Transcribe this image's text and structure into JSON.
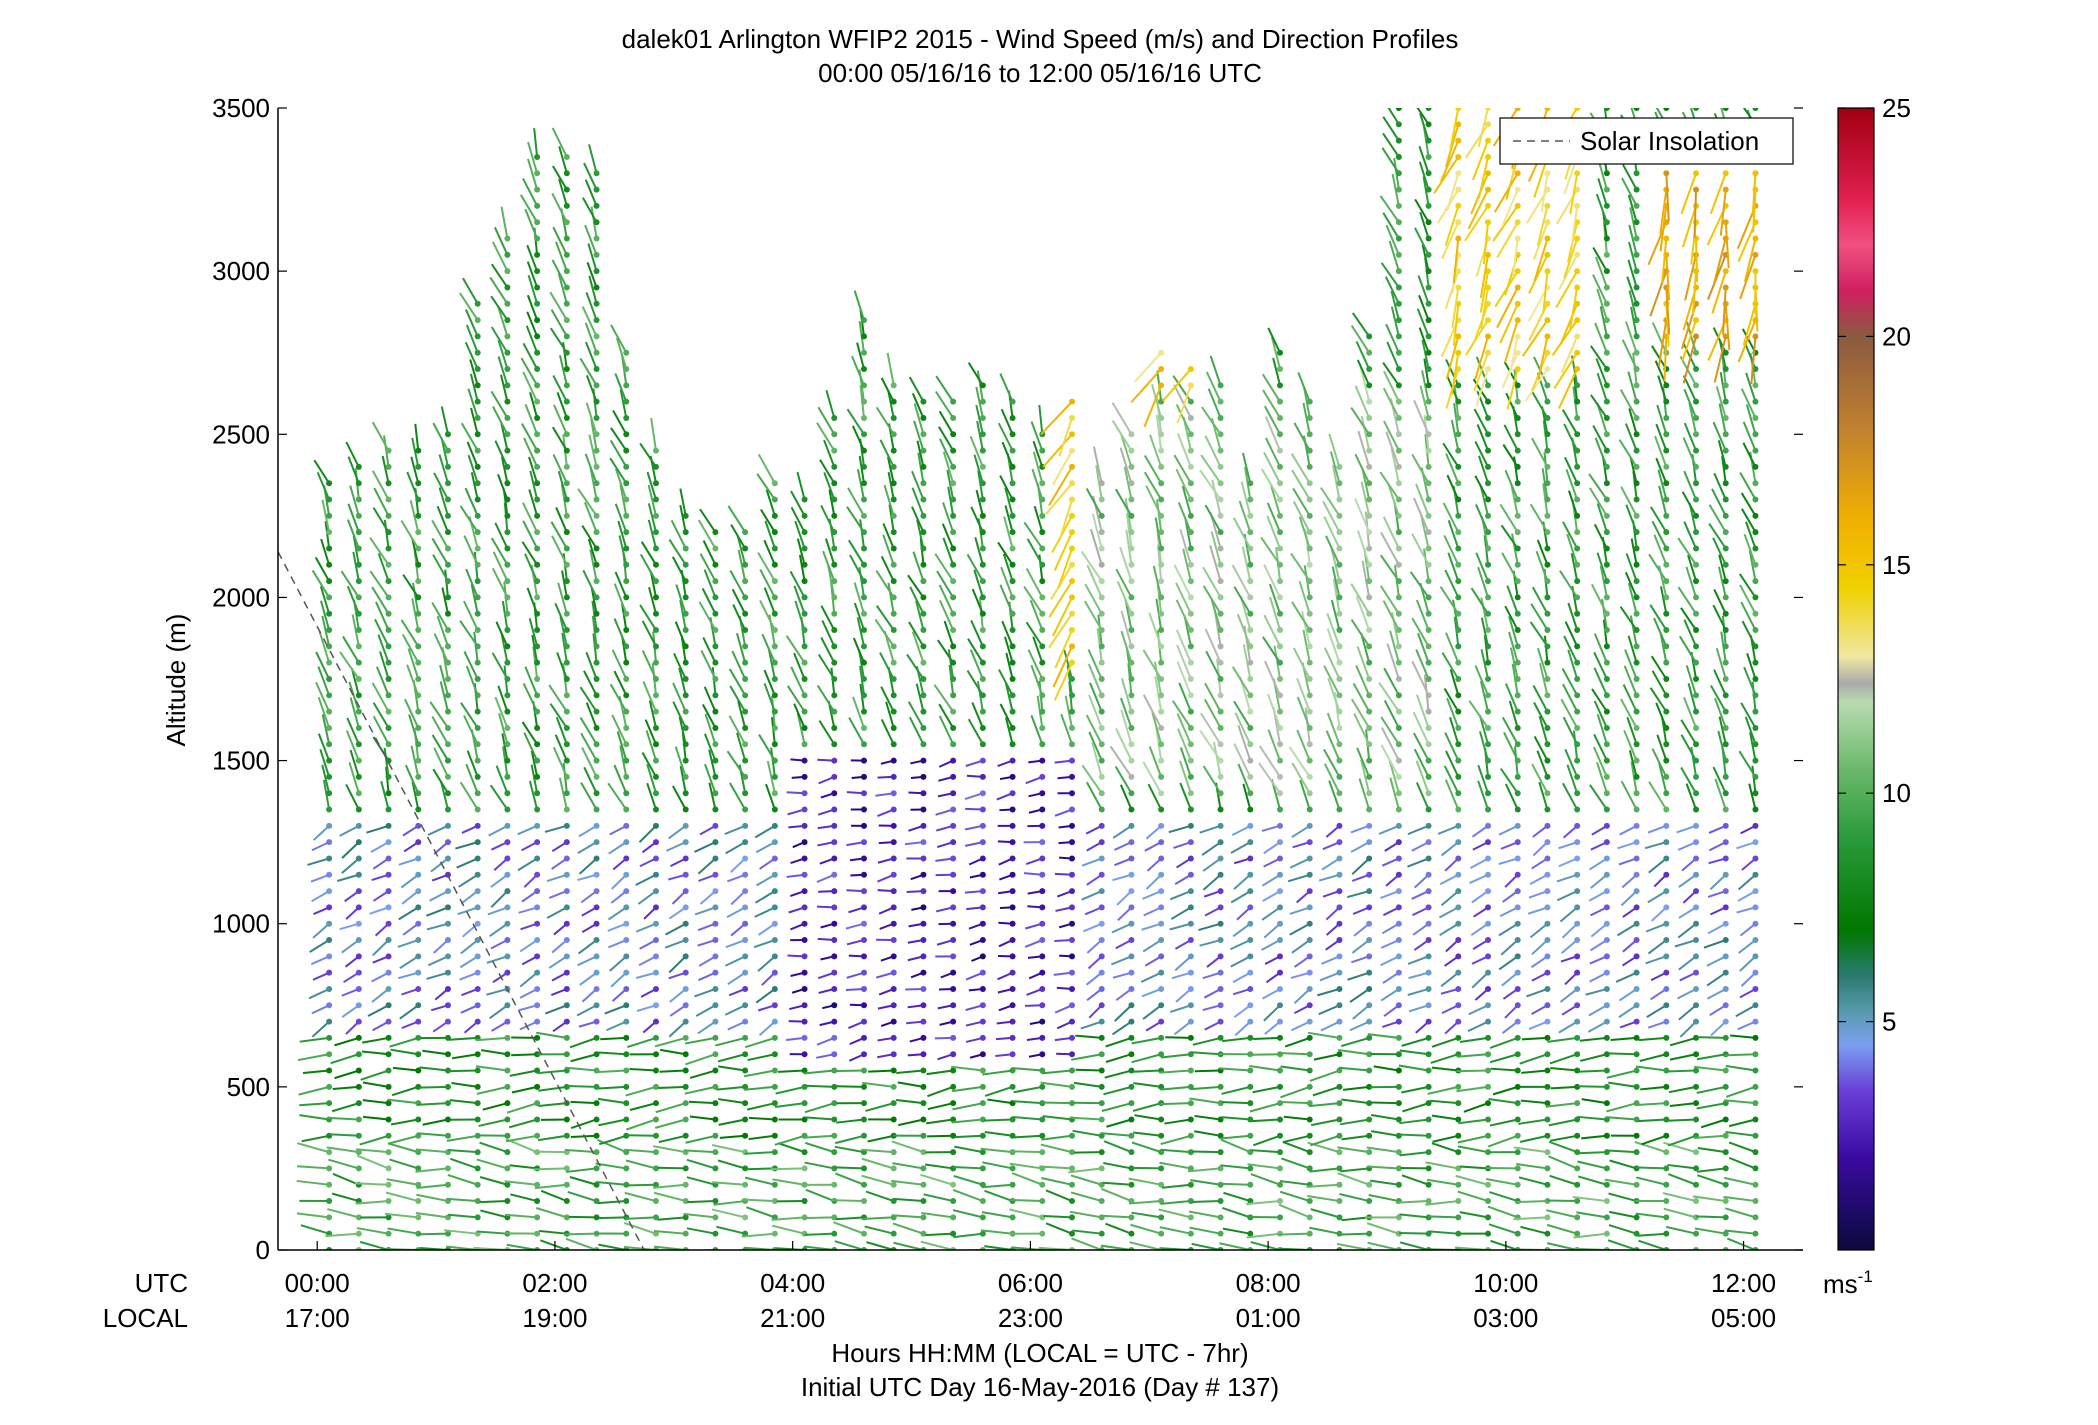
{
  "chart_data": {
    "type": "scatter",
    "title_lines": [
      "dalek01 Arlington WFIP2 2015 - Wind Speed (m/s) and Direction Profiles",
      "00:00 05/16/16 to 12:00 05/16/16  UTC"
    ],
    "ylabel": "Altitude (m)",
    "ylim": [
      0,
      3500
    ],
    "y_ticks": [
      "0",
      "500",
      "1000",
      "1500",
      "2000",
      "2500",
      "3000",
      "3500"
    ],
    "xlim": [
      -0.33,
      12.5
    ],
    "x_tick_values": [
      0,
      2,
      4,
      6,
      8,
      10,
      12
    ],
    "x_ticks_utc": [
      "00:00",
      "02:00",
      "04:00",
      "06:00",
      "08:00",
      "10:00",
      "12:00"
    ],
    "x_ticks_local": [
      "17:00",
      "19:00",
      "21:00",
      "23:00",
      "01:00",
      "03:00",
      "05:00"
    ],
    "x_row_labels": [
      "UTC",
      "LOCAL"
    ],
    "xlabel_lines": [
      "Hours HH:MM  (LOCAL = UTC - 7hr)",
      "Initial UTC Day 16-May-2016 (Day # 137)"
    ],
    "legend": {
      "label": "Solar Insolation",
      "placement": "top-right",
      "style": "dashed",
      "color": "#555555"
    },
    "colorbar": {
      "range": [
        0,
        25
      ],
      "ticks": [
        "5",
        "10",
        "15",
        "20",
        "25"
      ],
      "unit_base": "ms",
      "unit_sup": "-1",
      "stops": [
        {
          "v": 0,
          "c": "#0a0a3c"
        },
        {
          "v": 2,
          "c": "#3a0aa0"
        },
        {
          "v": 3.5,
          "c": "#6a40d8"
        },
        {
          "v": 4.5,
          "c": "#7aa0f0"
        },
        {
          "v": 5.2,
          "c": "#5a9ab0"
        },
        {
          "v": 6,
          "c": "#2a7a70"
        },
        {
          "v": 7,
          "c": "#007800"
        },
        {
          "v": 9,
          "c": "#2a9a3a"
        },
        {
          "v": 10.5,
          "c": "#6ab86a"
        },
        {
          "v": 12,
          "c": "#b8dcb0"
        },
        {
          "v": 12.4,
          "c": "#aaaaaa"
        },
        {
          "v": 13,
          "c": "#f0e8a0"
        },
        {
          "v": 14.5,
          "c": "#f0d000"
        },
        {
          "v": 16,
          "c": "#f0b000"
        },
        {
          "v": 18,
          "c": "#c08030"
        },
        {
          "v": 20,
          "c": "#8a5a40"
        },
        {
          "v": 21,
          "c": "#d02060"
        },
        {
          "v": 22,
          "c": "#f05080"
        },
        {
          "v": 23,
          "c": "#e02050"
        },
        {
          "v": 25,
          "c": "#a00010"
        }
      ]
    },
    "solar_insolation_line": [
      [
        -0.33,
        2140
      ],
      [
        2.75,
        0
      ]
    ],
    "profile_times": [
      0.1,
      0.35,
      0.6,
      0.85,
      1.1,
      1.35,
      1.6,
      1.85,
      2.1,
      2.35,
      2.6,
      2.85,
      3.1,
      3.35,
      3.6,
      3.85,
      4.1,
      4.35,
      4.6,
      4.85,
      5.1,
      5.35,
      5.6,
      5.85,
      6.1,
      6.35,
      6.6,
      6.85,
      7.1,
      7.35,
      7.6,
      7.85,
      8.1,
      8.35,
      8.6,
      8.85,
      9.1,
      9.35,
      9.6,
      9.85,
      10.1,
      10.35,
      10.6,
      10.85,
      11.1,
      11.35,
      11.6,
      11.85,
      12.1
    ],
    "profile_top_m": [
      2380,
      2420,
      2450,
      2480,
      2520,
      2900,
      3100,
      3370,
      3350,
      3300,
      2750,
      2450,
      2280,
      2200,
      2220,
      2350,
      2340,
      2570,
      2850,
      2650,
      2600,
      2620,
      2650,
      2600,
      2520,
      2600,
      2360,
      2500,
      2780,
      2720,
      2650,
      2350,
      2750,
      2600,
      2400,
      2800,
      3500,
      3500,
      3500,
      3500,
      3500,
      3500,
      3500,
      3500,
      3500,
      3500,
      3500,
      3500,
      3500
    ],
    "wind_field": {
      "altitude_step_m": 50,
      "layers": [
        {
          "z0": 0,
          "z1": 350,
          "speed": 9.5,
          "direction_deg": 262
        },
        {
          "z0": 350,
          "z1": 700,
          "speed": 8.5,
          "direction_deg": 275
        },
        {
          "z0": 700,
          "z1": 1350,
          "speed": 4.5,
          "direction_deg": 300
        },
        {
          "z0": 1350,
          "z1": 3500,
          "speed": 9.0,
          "direction_deg": 200
        }
      ],
      "note_regions": [
        {
          "t0": 4.0,
          "t1": 6.5,
          "z0": 600,
          "z1": 1500,
          "speed": 2.5,
          "direction_deg": 280
        },
        {
          "t0": 6.3,
          "t1": 7.5,
          "z0": 1800,
          "z1": 2900,
          "speed": 14.5,
          "direction_deg": 330
        },
        {
          "t0": 9.5,
          "t1": 10.7,
          "z0": 2700,
          "z1": 3500,
          "speed": 14.5,
          "direction_deg": 340
        },
        {
          "t0": 11.3,
          "t1": 12.1,
          "z0": 2800,
          "z1": 3300,
          "speed": 16.0,
          "direction_deg": 350
        },
        {
          "t0": 6.5,
          "t1": 9.5,
          "z0": 1400,
          "z1": 2600,
          "speed": 11.0,
          "direction_deg": 200
        }
      ]
    }
  }
}
